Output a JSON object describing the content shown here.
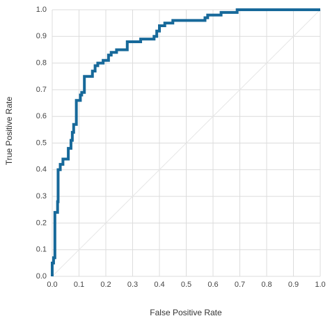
{
  "chart_data": {
    "type": "line",
    "x_label": "False Positive Rate",
    "y_label": "True Positive Rate",
    "color": "#17699a",
    "grid": true,
    "xlim": [
      0,
      1
    ],
    "ylim": [
      0,
      1
    ],
    "xticks": [
      {
        "value": 0,
        "label": "0.0"
      },
      0.1,
      0.2,
      0.3,
      0.4,
      0.5,
      0.6,
      0.7,
      0.8,
      0.9,
      {
        "value": 1,
        "label": "1.0"
      }
    ],
    "yticks": [
      {
        "value": 0,
        "label": "0.0"
      },
      0.1,
      0.2,
      0.3,
      0.4,
      0.5,
      0.6,
      0.7,
      0.8,
      0.9,
      {
        "value": 1,
        "label": "1.0"
      }
    ],
    "x": [
      0,
      0,
      0.005,
      0.005,
      0.01,
      0.01,
      0.02,
      0.02,
      0.022,
      0.022,
      0.03,
      0.03,
      0.04,
      0.04,
      0.06,
      0.06,
      0.07,
      0.07,
      0.075,
      0.075,
      0.08,
      0.08,
      0.09,
      0.09,
      0.105,
      0.105,
      0.11,
      0.11,
      0.12,
      0.12,
      0.15,
      0.15,
      0.16,
      0.16,
      0.17,
      0.17,
      0.19,
      0.19,
      0.21,
      0.21,
      0.22,
      0.22,
      0.24,
      0.24,
      0.28,
      0.28,
      0.33,
      0.33,
      0.38,
      0.38,
      0.39,
      0.39,
      0.4,
      0.4,
      0.42,
      0.42,
      0.45,
      0.45,
      0.57,
      0.57,
      0.58,
      0.58,
      0.63,
      0.63,
      0.69,
      0.69,
      1.0
    ],
    "values": [
      0,
      0.05,
      0.05,
      0.07,
      0.07,
      0.24,
      0.24,
      0.28,
      0.28,
      0.4,
      0.4,
      0.42,
      0.42,
      0.44,
      0.44,
      0.48,
      0.48,
      0.51,
      0.51,
      0.54,
      0.54,
      0.57,
      0.57,
      0.66,
      0.66,
      0.68,
      0.68,
      0.69,
      0.69,
      0.75,
      0.75,
      0.77,
      0.77,
      0.79,
      0.79,
      0.8,
      0.8,
      0.81,
      0.81,
      0.83,
      0.83,
      0.84,
      0.84,
      0.85,
      0.85,
      0.88,
      0.88,
      0.89,
      0.89,
      0.9,
      0.9,
      0.92,
      0.92,
      0.94,
      0.94,
      0.95,
      0.95,
      0.96,
      0.96,
      0.97,
      0.97,
      0.98,
      0.98,
      0.99,
      0.99,
      1.0,
      1.0
    ]
  }
}
